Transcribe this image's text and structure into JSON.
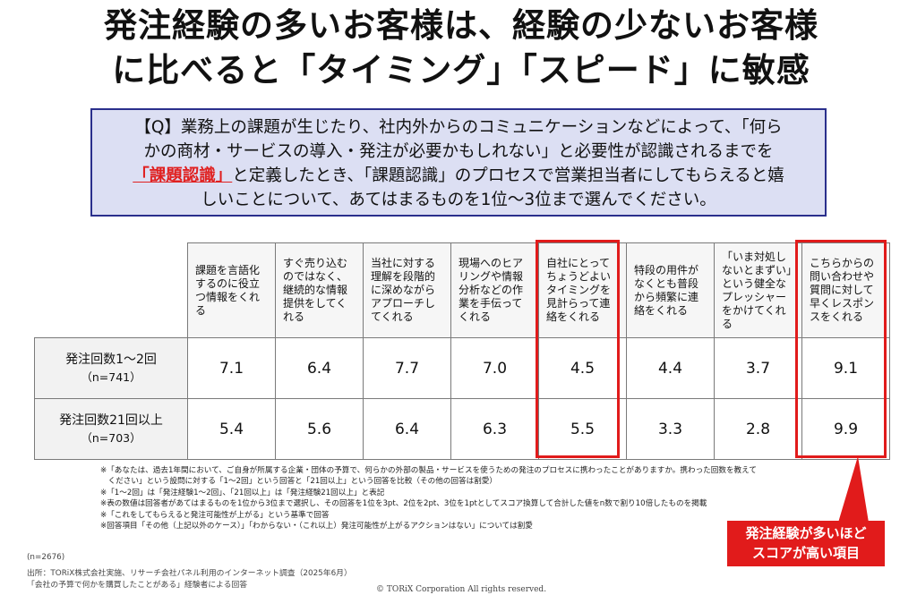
{
  "title": {
    "line1": "発注経験の多いお客様は、経験の少ないお客様",
    "line2": "に比べると「タイミング」「スピード」に敏感"
  },
  "question": {
    "line1": "【Q】業務上の課題が生じたり、社内外からのコミュニケーションなどによって、「何ら",
    "line2": "かの商材・サービスの導入・発注が必要かもしれない」と必要性が認識されるまでを",
    "highlight": "「課題認識」",
    "line3_rest": "と定義したとき、「課題認識」のプロセスで営業担当者にしてもらえると嬉",
    "line4": "しいことについて、あてはまるものを1位～3位まで選んでください。"
  },
  "table": {
    "columns": [
      "課題を言語化するのに役立つ情報をくれる",
      "すぐ売り込むのではなく、継続的な情報提供をしてくれる",
      "当社に対する理解を段階的に深めながらアプローチしてくれる",
      "現場へのヒアリングや情報分析などの作業を手伝ってくれる",
      "自社にとってちょうどよいタイミングを見計らって連絡をくれる",
      "特段の用件がなくとも普段から頻繁に連絡をくれる",
      "「いま対処しないとまずい」という健全なプレッシャーをかけてくれる",
      "こちらからの問い合わせや質問に対して早くレスポンスをくれる"
    ],
    "rows": [
      {
        "label": "発注回数1～2回",
        "n": "（n=741）",
        "values": [
          "7.1",
          "6.4",
          "7.7",
          "7.0",
          "4.5",
          "4.4",
          "3.7",
          "9.1"
        ]
      },
      {
        "label": "発注回数21回以上",
        "n": "（n=703）",
        "values": [
          "5.4",
          "5.6",
          "6.4",
          "6.3",
          "5.5",
          "3.3",
          "2.8",
          "9.9"
        ]
      }
    ]
  },
  "notes": [
    "※「あなたは、過去1年間において、ご自身が所属する企業・団体の予算で、何らかの外部の製品・サービスを使うための発注のプロセスに携わったことがありますか。携わった回数を教えて",
    "　ください」という設問に対する「1～2回」という回答と「21回以上」という回答を比較（その他の回答は割愛）",
    "※「1～2回」は「発注経験1～2回」、「21回以上」は「発注経験21回以上」と表記",
    "※表の数値は回答者があてはまるものを1位から3位まで選択し、その回答を1位を3pt、2位を2pt、3位を1ptとしてスコア換算して合計した値をn数で割り10倍したものを掲載",
    "※「これをしてもらえると発注可能性が上がる」という基準で回答",
    "※回答項目「その他（上記以外のケース）」「わからない・（これ以上）発注可能性が上がるアクションはない」については割愛"
  ],
  "callout": {
    "line1": "発注経験が多いほど",
    "line2": "スコアが高い項目"
  },
  "footer": {
    "n_total": "(n=2676)",
    "source1": "出所：TORiX株式会社実施、リサーチ会社パネル利用のインターネット調査（2025年6月）",
    "source2": "「会社の予算で何かを購買したことがある」経験者による回答",
    "copyright": "© TORiX Corporation All rights reserved."
  },
  "colors": {
    "accent_red": "#e11b1b",
    "question_bg": "#dcdff3",
    "question_border": "#2a2f8c"
  }
}
